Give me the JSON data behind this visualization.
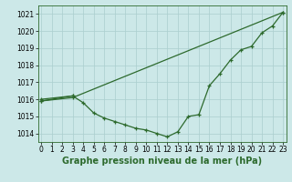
{
  "series_upper": {
    "x": [
      0,
      3,
      23
    ],
    "y": [
      1015.9,
      1016.1,
      1021.1
    ]
  },
  "series_lower": {
    "x": [
      0,
      3,
      4,
      5,
      6,
      7,
      8,
      9,
      10,
      11,
      12,
      13,
      14,
      15,
      16,
      17,
      18,
      19,
      20,
      21,
      22,
      23
    ],
    "y": [
      1016.0,
      1016.2,
      1015.8,
      1015.2,
      1014.9,
      1014.7,
      1014.5,
      1014.3,
      1014.2,
      1014.0,
      1013.8,
      1014.1,
      1015.0,
      1015.1,
      1016.8,
      1017.5,
      1018.3,
      1018.9,
      1019.1,
      1019.9,
      1020.3,
      1021.1
    ]
  },
  "series_short": {
    "x": [
      0,
      3
    ],
    "y": [
      1015.9,
      1016.2
    ]
  },
  "line_color": "#2d6a2d",
  "background_color": "#cce8e8",
  "grid_color": "#aacece",
  "xlim": [
    -0.3,
    23.3
  ],
  "ylim": [
    1013.5,
    1021.5
  ],
  "yticks": [
    1014,
    1015,
    1016,
    1017,
    1018,
    1019,
    1020,
    1021
  ],
  "xticks": [
    0,
    1,
    2,
    3,
    4,
    5,
    6,
    7,
    8,
    9,
    10,
    11,
    12,
    13,
    14,
    15,
    16,
    17,
    18,
    19,
    20,
    21,
    22,
    23
  ],
  "xlabel": "Graphe pression niveau de la mer (hPa)",
  "label_fontsize": 7,
  "tick_fontsize": 5.5
}
